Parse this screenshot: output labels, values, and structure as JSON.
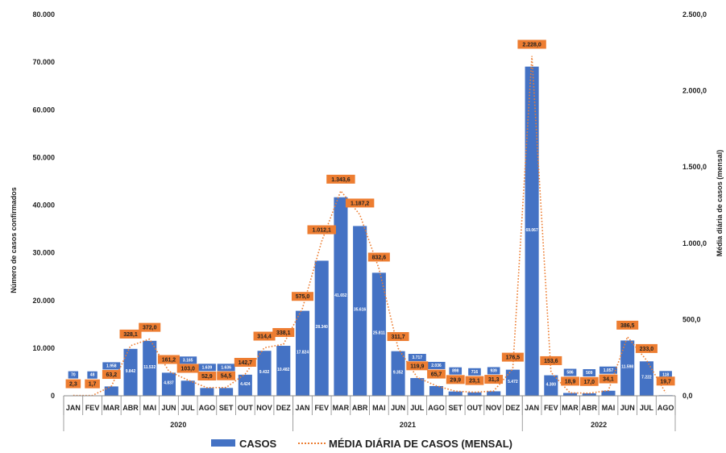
{
  "chart_data": {
    "type": "bar",
    "title": "",
    "ylabel": "Número de casos confirmados",
    "y2label": "Média diária de casos (mensal)",
    "ylim": [
      0,
      80000
    ],
    "y2lim": [
      0,
      2500
    ],
    "yticks": [
      "0",
      "10.000",
      "20.000",
      "30.000",
      "40.000",
      "50.000",
      "60.000",
      "70.000",
      "80.000"
    ],
    "y2ticks": [
      "0,0",
      "500,0",
      "1.000,0",
      "1.500,0",
      "2.000,0",
      "2.500,0"
    ],
    "years": [
      {
        "label": "2020",
        "months": 12
      },
      {
        "label": "2021",
        "months": 12
      },
      {
        "label": "2022",
        "months": 8
      }
    ],
    "categories": [
      "JAN",
      "FEV",
      "MAR",
      "ABR",
      "MAI",
      "JUN",
      "JUL",
      "AGO",
      "SET",
      "OUT",
      "NOV",
      "DEZ",
      "JAN",
      "FEV",
      "MAR",
      "ABR",
      "MAI",
      "JUN",
      "JUL",
      "AGO",
      "SET",
      "OUT",
      "NOV",
      "DEZ",
      "JAN",
      "FEV",
      "MAR",
      "ABR",
      "MAI",
      "JUN",
      "JUL",
      "AGO"
    ],
    "series": [
      {
        "name": "CASOS",
        "color": "#4472C4",
        "values": [
          70,
          48,
          1958,
          9842,
          11532,
          4837,
          3165,
          1639,
          1636,
          4424,
          9432,
          10482,
          17824,
          28340,
          41652,
          35616,
          25811,
          9352,
          3717,
          2036,
          898,
          716,
          939,
          5472,
          69067,
          4300,
          586,
          509,
          1057,
          11598,
          7222,
          118
        ],
        "labels": [
          "70",
          "48",
          "1.958",
          "9.842",
          "11.532",
          "4.837",
          "3.165",
          "1.639",
          "1.636",
          "4.424",
          "9.432",
          "10.482",
          "17.824",
          "28.340",
          "41.652",
          "35.616",
          "25.811",
          "9.352",
          "3.717",
          "2.036",
          "898",
          "716",
          "939",
          "5.472",
          "69.067",
          "4.300",
          "586",
          "509",
          "1.057",
          "11.598",
          "7.222",
          "118"
        ]
      },
      {
        "name": "MÉDIA DIÁRIA DE CASOS (MENSAL)",
        "color": "#ED7D31",
        "axis": "right",
        "values": [
          2.3,
          1.7,
          63.2,
          328.1,
          372.0,
          161.2,
          103.0,
          52.9,
          54.5,
          142.7,
          314.4,
          338.1,
          575.0,
          1012.1,
          1343.6,
          1187.2,
          832.6,
          311.7,
          119.9,
          65.7,
          29.9,
          23.1,
          31.3,
          176.5,
          2228.0,
          153.6,
          18.9,
          17.0,
          34.1,
          386.5,
          233.0,
          19.7
        ],
        "labels": [
          "2,3",
          "1,7",
          "63,2",
          "328,1",
          "372,0",
          "161,2",
          "103,0",
          "52,9",
          "54,5",
          "142,7",
          "314,4",
          "338,1",
          "575,0",
          "1.012,1",
          "1.343,6",
          "1.187,2",
          "832,6",
          "311,7",
          "119,9",
          "65,7",
          "29,9",
          "23,1",
          "31,3",
          "176,5",
          "2.228,0",
          "153,6",
          "18,9",
          "17,0",
          "34,1",
          "386,5",
          "233,0",
          "19,7"
        ]
      }
    ],
    "legend": {
      "position": "bottom"
    },
    "grid": false
  }
}
